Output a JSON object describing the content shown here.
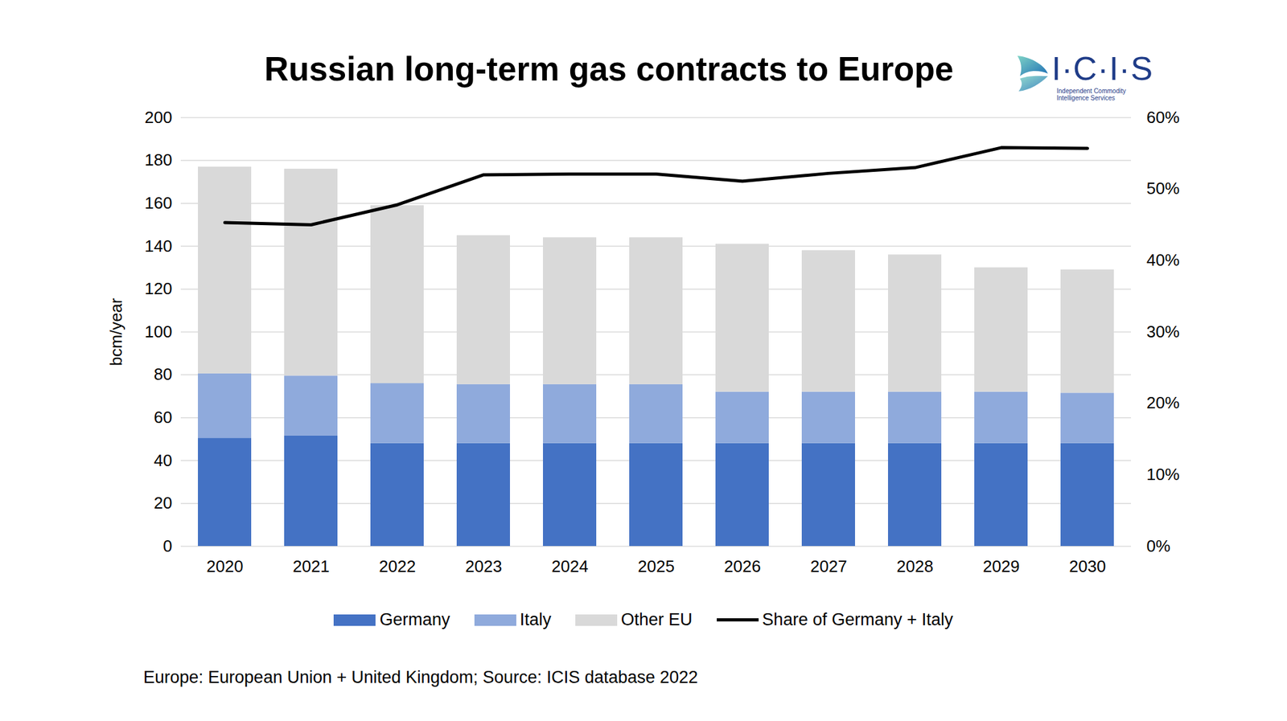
{
  "chart_data": {
    "type": "bar",
    "title": "Russian long-term gas contracts to Europe",
    "logo": "I·C·I·S",
    "logo_subtitle": "Independent Commodity Intelligence Services",
    "caption": "Europe: European Union + United Kingdom; Source: ICIS database 2022",
    "y_label": "bcm/year",
    "stacked": true,
    "grid": true,
    "legend": "bottom",
    "categories": [
      "2020",
      "2021",
      "2022",
      "2023",
      "2024",
      "2025",
      "2026",
      "2027",
      "2028",
      "2029",
      "2030"
    ],
    "series": [
      {
        "name": "Germany",
        "color": "#4472c4",
        "values": [
          50.5,
          51.5,
          48,
          48,
          48,
          48,
          48,
          48,
          48,
          48,
          48
        ]
      },
      {
        "name": "Italy",
        "color": "#8faadc",
        "values": [
          30,
          28,
          28,
          27.5,
          27.5,
          27.5,
          24,
          24,
          24,
          24,
          23.5
        ]
      },
      {
        "name": "Other EU",
        "color": "#d9d9d9",
        "values": [
          96.5,
          96.5,
          83,
          69.5,
          68.5,
          68.5,
          69,
          66,
          64,
          58,
          57.5
        ]
      },
      {
        "name": "Share of Germany + Italy",
        "type": "line",
        "axis": "y2",
        "color": "#000000",
        "values": [
          45.3,
          45.0,
          47.8,
          52.0,
          52.1,
          52.1,
          51.1,
          52.2,
          53.0,
          55.8,
          55.7
        ]
      }
    ],
    "ylim": [
      0,
      200
    ],
    "yticks": [
      0,
      20,
      40,
      60,
      80,
      100,
      120,
      140,
      160,
      180,
      200
    ],
    "y2lim": [
      0,
      60
    ],
    "y2ticks": [
      {
        "value": 0,
        "label": "0%"
      },
      {
        "value": 10,
        "label": "10%"
      },
      {
        "value": 20,
        "label": "20%"
      },
      {
        "value": 30,
        "label": "30%"
      },
      {
        "value": 40,
        "label": "40%"
      },
      {
        "value": 50,
        "label": "50%"
      },
      {
        "value": 60,
        "label": "60%"
      }
    ]
  }
}
